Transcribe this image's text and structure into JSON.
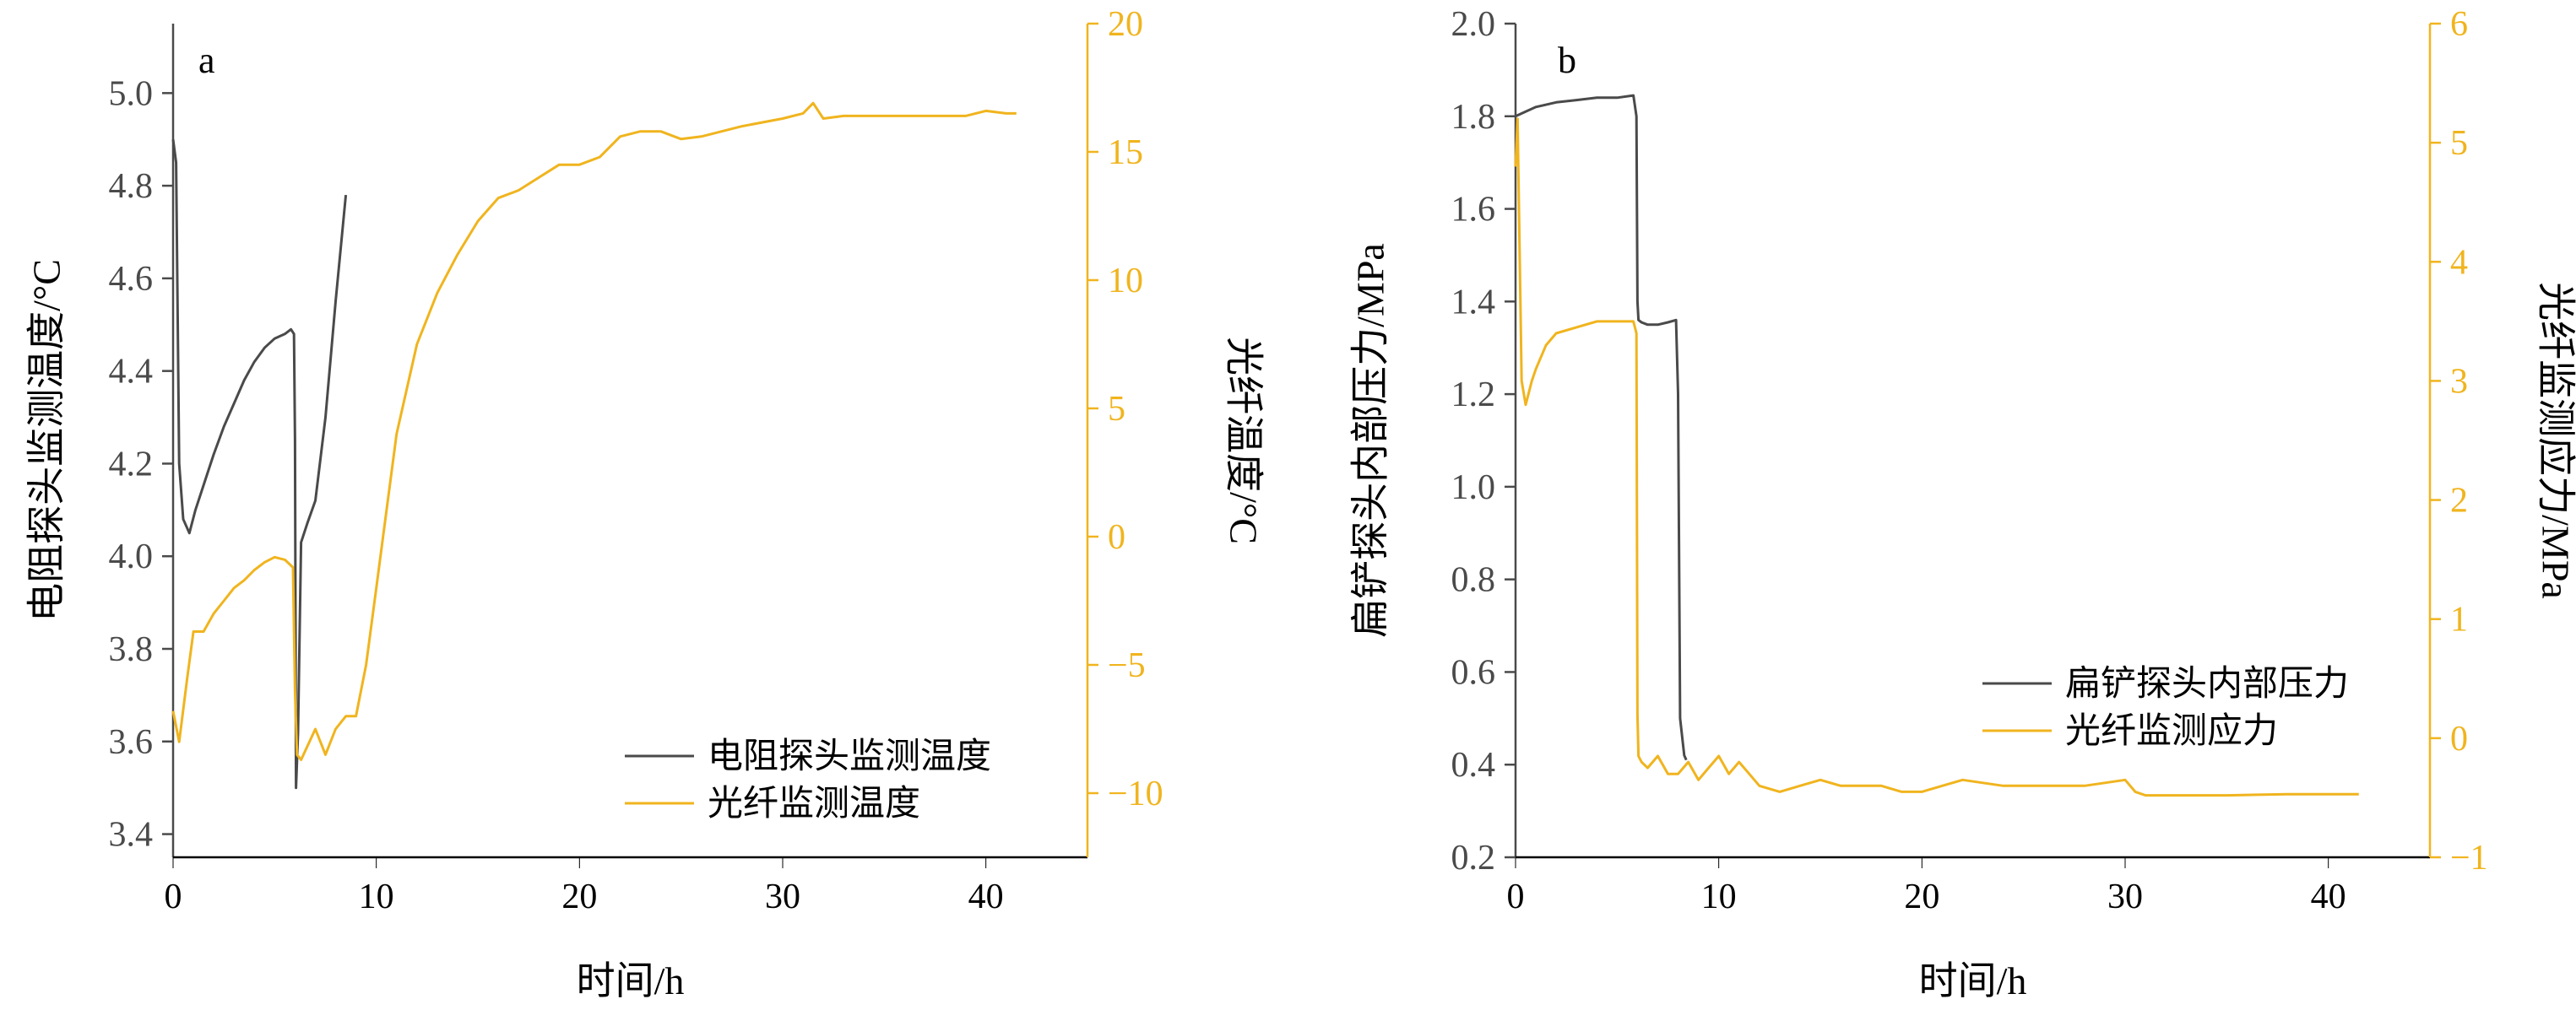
{
  "colors": {
    "series_gray": "#4a4a4a",
    "series_yellow": "#f0b41e",
    "axis": "#000000"
  },
  "chart_data": [
    {
      "type": "line",
      "panel_label": "a",
      "xlabel": "时间/h",
      "ylabel_left": "电阻探头监测温度/°C",
      "ylabel_right": "光纤温度/°C",
      "xlim": [
        0,
        45
      ],
      "ylim_left": [
        3.35,
        5.15
      ],
      "ylim_right": [
        -12.5,
        20
      ],
      "x_ticks": [
        0,
        10,
        20,
        30,
        40
      ],
      "x_tick_labels": [
        "0",
        "10",
        "20",
        "30",
        "40"
      ],
      "y_left_ticks": [
        3.4,
        3.6,
        3.8,
        4.0,
        4.2,
        4.4,
        4.6,
        4.8,
        5.0
      ],
      "y_left_tick_labels": [
        "3.4",
        "3.6",
        "3.8",
        "4.0",
        "4.2",
        "4.4",
        "4.6",
        "4.8",
        "5.0"
      ],
      "y_right_ticks": [
        -10,
        -5,
        0,
        5,
        10,
        15,
        20
      ],
      "y_right_tick_labels": [
        "−10",
        "−5",
        "0",
        "5",
        "10",
        "15",
        "20"
      ],
      "grid": false,
      "legend_position": "bottom-right",
      "series": [
        {
          "name": "电阻探头监测温度",
          "axis": "left",
          "color": "#4a4a4a",
          "x": [
            0.0,
            0.15,
            0.3,
            0.5,
            0.8,
            1.1,
            1.4,
            1.7,
            2.0,
            2.5,
            3.0,
            3.5,
            4.0,
            4.5,
            5.0,
            5.5,
            5.8,
            5.95,
            6.0,
            6.05,
            6.15,
            6.3,
            6.6,
            7.0,
            7.5,
            8.0,
            8.5
          ],
          "y": [
            4.9,
            4.85,
            4.2,
            4.08,
            4.05,
            4.1,
            4.14,
            4.18,
            4.22,
            4.28,
            4.33,
            4.38,
            4.42,
            4.45,
            4.47,
            4.48,
            4.49,
            4.48,
            4.25,
            3.5,
            3.62,
            4.03,
            4.07,
            4.12,
            4.3,
            4.55,
            4.78
          ]
        },
        {
          "name": "光纤监测温度",
          "axis": "right",
          "color": "#f0b41e",
          "x": [
            0.0,
            0.3,
            0.7,
            1.0,
            1.5,
            2.0,
            2.5,
            3.0,
            3.5,
            4.0,
            4.5,
            5.0,
            5.5,
            5.9,
            6.0,
            6.1,
            6.3,
            7.0,
            7.5,
            8.0,
            8.5,
            9.0,
            9.5,
            10.0,
            11.0,
            12.0,
            13.0,
            14.0,
            15.0,
            16.0,
            17.0,
            18.0,
            19.0,
            20.0,
            21.0,
            22.0,
            23.0,
            24.0,
            25.0,
            26.0,
            28.0,
            30.0,
            31.0,
            31.5,
            32.0,
            33.0,
            35.0,
            37.0,
            39.0,
            40.0,
            41.0,
            41.5
          ],
          "y": [
            -6.8,
            -8.0,
            -5.5,
            -3.7,
            -3.7,
            -3.0,
            -2.5,
            -2.0,
            -1.7,
            -1.3,
            -1.0,
            -0.8,
            -0.9,
            -1.2,
            -6.0,
            -8.5,
            -8.7,
            -7.5,
            -8.5,
            -7.5,
            -7.0,
            -7.0,
            -5.0,
            -2.0,
            4.0,
            7.5,
            9.5,
            11.0,
            12.3,
            13.2,
            13.5,
            14.0,
            14.5,
            14.5,
            14.8,
            15.6,
            15.8,
            15.8,
            15.5,
            15.6,
            16.0,
            16.3,
            16.5,
            16.9,
            16.3,
            16.4,
            16.4,
            16.4,
            16.4,
            16.6,
            16.5,
            16.5
          ]
        }
      ]
    },
    {
      "type": "line",
      "panel_label": "b",
      "xlabel": "时间/h",
      "ylabel_left": "扁铲探头内部压力/MPa",
      "ylabel_right": "光纤监测应力/MPa",
      "xlim": [
        0,
        45
      ],
      "ylim_left": [
        0.2,
        2.0
      ],
      "ylim_right": [
        -1,
        6
      ],
      "x_ticks": [
        0,
        10,
        20,
        30,
        40
      ],
      "x_tick_labels": [
        "0",
        "10",
        "20",
        "30",
        "40"
      ],
      "y_left_ticks": [
        0.2,
        0.4,
        0.6,
        0.8,
        1.0,
        1.2,
        1.4,
        1.6,
        1.8,
        2.0
      ],
      "y_left_tick_labels": [
        "0.2",
        "0.4",
        "0.6",
        "0.8",
        "1.0",
        "1.2",
        "1.4",
        "1.6",
        "1.8",
        "2.0"
      ],
      "y_right_ticks": [
        -1,
        0,
        1,
        2,
        3,
        4,
        5,
        6
      ],
      "y_right_tick_labels": [
        "−1",
        "0",
        "1",
        "2",
        "3",
        "4",
        "5",
        "6"
      ],
      "grid": false,
      "legend_position": "bottom-right",
      "series": [
        {
          "name": "扁铲探头内部压力",
          "axis": "left",
          "color": "#4a4a4a",
          "x": [
            0.0,
            0.5,
            1.0,
            2.0,
            3.0,
            4.0,
            5.0,
            5.8,
            5.95,
            6.0,
            6.05,
            6.2,
            6.5,
            7.0,
            7.5,
            7.9,
            8.0,
            8.1,
            8.3,
            8.4
          ],
          "y": [
            1.8,
            1.81,
            1.82,
            1.83,
            1.835,
            1.84,
            1.84,
            1.845,
            1.8,
            1.4,
            1.36,
            1.355,
            1.35,
            1.35,
            1.355,
            1.36,
            1.2,
            0.5,
            0.42,
            0.41
          ]
        },
        {
          "name": "光纤监测应力",
          "axis": "right",
          "color": "#f0b41e",
          "x": [
            0.0,
            0.1,
            0.3,
            0.5,
            0.8,
            1.0,
            1.5,
            2.0,
            3.0,
            4.0,
            5.0,
            5.8,
            5.95,
            6.0,
            6.05,
            6.2,
            6.5,
            7.0,
            7.5,
            8.0,
            8.5,
            9.0,
            9.5,
            10.0,
            10.5,
            11.0,
            11.5,
            12.0,
            13.0,
            14.0,
            15.0,
            16.0,
            17.0,
            18.0,
            19.0,
            20.0,
            21.0,
            22.0,
            24.0,
            26.0,
            28.0,
            30.0,
            30.5,
            31.0,
            32.0,
            35.0,
            38.0,
            41.5
          ],
          "y": [
            4.8,
            5.2,
            3.0,
            2.8,
            3.0,
            3.1,
            3.3,
            3.4,
            3.45,
            3.5,
            3.5,
            3.5,
            3.4,
            0.2,
            -0.15,
            -0.2,
            -0.25,
            -0.15,
            -0.3,
            -0.3,
            -0.2,
            -0.35,
            -0.25,
            -0.15,
            -0.3,
            -0.2,
            -0.3,
            -0.4,
            -0.45,
            -0.4,
            -0.35,
            -0.4,
            -0.4,
            -0.4,
            -0.45,
            -0.45,
            -0.4,
            -0.35,
            -0.4,
            -0.4,
            -0.4,
            -0.35,
            -0.45,
            -0.48,
            -0.48,
            -0.48,
            -0.47,
            -0.47
          ]
        }
      ]
    }
  ]
}
